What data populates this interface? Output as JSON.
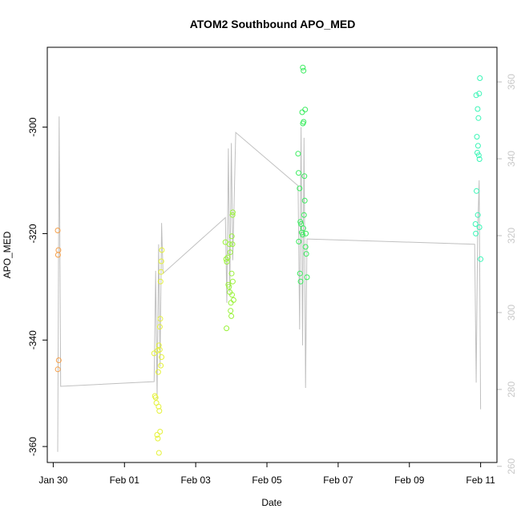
{
  "chart_data": {
    "type": "scatter",
    "title": "ATOM2 Southbound APO_MED",
    "xlabel": "Date",
    "ylabel": "APO_MED",
    "x_range": [
      "2017-01-29T20:00",
      "2017-02-11T11:00"
    ],
    "ylim": [
      -363,
      -285
    ],
    "y2lim": [
      261,
      369
    ],
    "grid": false,
    "x_ticks": [
      {
        "date": "2017-01-30",
        "label": "Jan 30"
      },
      {
        "date": "2017-02-01",
        "label": "Feb 01"
      },
      {
        "date": "2017-02-03",
        "label": "Feb 03"
      },
      {
        "date": "2017-02-05",
        "label": "Feb 05"
      },
      {
        "date": "2017-02-07",
        "label": "Feb 07"
      },
      {
        "date": "2017-02-09",
        "label": "Feb 09"
      },
      {
        "date": "2017-02-11",
        "label": "Feb 11"
      }
    ],
    "y_ticks": [
      -360,
      -340,
      -320,
      -300
    ],
    "y2_ticks": [
      260,
      280,
      300,
      320,
      340,
      360
    ],
    "colors": {
      "line": "#c0c0c0",
      "group1": "#f5a04b",
      "group2": "#e5f23a",
      "group3": "#9af23a",
      "group4": "#3aec5e",
      "group5": "#3af5b6",
      "right_axis": "#c8c8c8"
    },
    "point_groups": [
      {
        "color": "#f5a04b",
        "points": [
          {
            "x": "2017-01-30T03:00",
            "y": -319.4
          },
          {
            "x": "2017-01-30T03:30",
            "y": -323.1
          },
          {
            "x": "2017-01-30T03:15",
            "y": -324.0
          },
          {
            "x": "2017-01-30T03:45",
            "y": -343.8
          },
          {
            "x": "2017-01-30T03:05",
            "y": -345.5
          }
        ]
      },
      {
        "color": "#e5f23a",
        "points": [
          {
            "x": "2017-02-01T20:00",
            "y": -342.5
          },
          {
            "x": "2017-02-01T20:30",
            "y": -350.5
          },
          {
            "x": "2017-02-01T21:00",
            "y": -350.8
          },
          {
            "x": "2017-02-01T21:30",
            "y": -351.8
          },
          {
            "x": "2017-02-01T22:00",
            "y": -357.8
          },
          {
            "x": "2017-02-01T22:30",
            "y": -358.5
          },
          {
            "x": "2017-02-01T23:00",
            "y": -352.5
          },
          {
            "x": "2017-02-01T23:30",
            "y": -353.3
          },
          {
            "x": "2017-02-02T00:00",
            "y": -357.2
          },
          {
            "x": "2017-02-01T23:15",
            "y": -361.2
          },
          {
            "x": "2017-02-01T22:15",
            "y": -342.0
          },
          {
            "x": "2017-02-01T23:45",
            "y": -341.8
          },
          {
            "x": "2017-02-02T01:00",
            "y": -343.2
          },
          {
            "x": "2017-02-02T00:30",
            "y": -344.8
          },
          {
            "x": "2017-02-01T23:10",
            "y": -341.0
          },
          {
            "x": "2017-02-01T23:50",
            "y": -337.5
          },
          {
            "x": "2017-02-02T00:10",
            "y": -336.0
          },
          {
            "x": "2017-02-01T22:45",
            "y": -346.0
          },
          {
            "x": "2017-02-02T01:10",
            "y": -323.1
          },
          {
            "x": "2017-02-02T00:50",
            "y": -325.2
          },
          {
            "x": "2017-02-02T00:40",
            "y": -327.2
          },
          {
            "x": "2017-02-02T00:20",
            "y": -329.0
          }
        ]
      },
      {
        "color": "#9af23a",
        "points": [
          {
            "x": "2017-02-03T20:00",
            "y": -321.6
          },
          {
            "x": "2017-02-03T20:30",
            "y": -324.8
          },
          {
            "x": "2017-02-03T21:00",
            "y": -325.3
          },
          {
            "x": "2017-02-03T21:30",
            "y": -324.5
          },
          {
            "x": "2017-02-03T22:00",
            "y": -329.6
          },
          {
            "x": "2017-02-03T22:30",
            "y": -330.0
          },
          {
            "x": "2017-02-03T23:00",
            "y": -331.0
          },
          {
            "x": "2017-02-03T23:30",
            "y": -334.5
          },
          {
            "x": "2017-02-04T00:00",
            "y": -335.5
          },
          {
            "x": "2017-02-03T20:45",
            "y": -337.8
          },
          {
            "x": "2017-02-04T00:30",
            "y": -331.5
          },
          {
            "x": "2017-02-04T01:00",
            "y": -329.0
          },
          {
            "x": "2017-02-04T01:30",
            "y": -332.5
          },
          {
            "x": "2017-02-04T00:15",
            "y": -327.5
          },
          {
            "x": "2017-02-04T00:45",
            "y": -322.0
          },
          {
            "x": "2017-02-04T00:20",
            "y": -320.5
          },
          {
            "x": "2017-02-04T00:50",
            "y": -316.5
          },
          {
            "x": "2017-02-04T01:00",
            "y": -316.0
          },
          {
            "x": "2017-02-03T23:15",
            "y": -323.5
          },
          {
            "x": "2017-02-03T22:45",
            "y": -322.0
          },
          {
            "x": "2017-02-03T23:45",
            "y": -333.0
          }
        ]
      },
      {
        "color": "#3aec5e",
        "points": [
          {
            "x": "2017-02-05T21:00",
            "y": -305.0
          },
          {
            "x": "2017-02-05T21:20",
            "y": -308.6
          },
          {
            "x": "2017-02-05T22:00",
            "y": -311.5
          },
          {
            "x": "2017-02-05T22:30",
            "y": -317.8
          },
          {
            "x": "2017-02-05T23:00",
            "y": -318.2
          },
          {
            "x": "2017-02-05T23:30",
            "y": -319.8
          },
          {
            "x": "2017-02-06T00:00",
            "y": -320.2
          },
          {
            "x": "2017-02-06T00:30",
            "y": -319.0
          },
          {
            "x": "2017-02-06T01:00",
            "y": -316.5
          },
          {
            "x": "2017-02-06T01:30",
            "y": -313.8
          },
          {
            "x": "2017-02-06T02:00",
            "y": -322.5
          },
          {
            "x": "2017-02-06T02:30",
            "y": -323.8
          },
          {
            "x": "2017-02-06T03:00",
            "y": -328.2
          },
          {
            "x": "2017-02-05T21:30",
            "y": -321.5
          },
          {
            "x": "2017-02-05T22:15",
            "y": -327.5
          },
          {
            "x": "2017-02-05T22:45",
            "y": -329.0
          },
          {
            "x": "2017-02-06T01:15",
            "y": -309.2
          },
          {
            "x": "2017-02-05T23:45",
            "y": -297.2
          },
          {
            "x": "2017-02-06T00:15",
            "y": -299.3
          },
          {
            "x": "2017-02-06T00:45",
            "y": -299.0
          },
          {
            "x": "2017-02-06T01:45",
            "y": -296.7
          },
          {
            "x": "2017-02-06T00:10",
            "y": -288.8
          },
          {
            "x": "2017-02-06T00:40",
            "y": -289.4
          },
          {
            "x": "2017-02-06T02:15",
            "y": -320.0
          }
        ]
      },
      {
        "color": "#3af5b6",
        "points": [
          {
            "x": "2017-02-10T21:00",
            "y": -294.0
          },
          {
            "x": "2017-02-10T23:00",
            "y": -293.7
          },
          {
            "x": "2017-02-10T23:30",
            "y": -290.8
          },
          {
            "x": "2017-02-10T22:00",
            "y": -296.6
          },
          {
            "x": "2017-02-10T22:30",
            "y": -298.3
          },
          {
            "x": "2017-02-10T21:30",
            "y": -301.8
          },
          {
            "x": "2017-02-10T22:15",
            "y": -303.5
          },
          {
            "x": "2017-02-10T21:45",
            "y": -304.8
          },
          {
            "x": "2017-02-10T22:45",
            "y": -305.3
          },
          {
            "x": "2017-02-10T23:15",
            "y": -306.0
          },
          {
            "x": "2017-02-10T21:15",
            "y": -312.0
          },
          {
            "x": "2017-02-10T22:05",
            "y": -316.5
          },
          {
            "x": "2017-02-10T20:30",
            "y": -318.2
          },
          {
            "x": "2017-02-10T23:10",
            "y": -318.8
          },
          {
            "x": "2017-02-10T20:45",
            "y": -320.0
          },
          {
            "x": "2017-02-11T00:00",
            "y": -324.8
          }
        ]
      }
    ],
    "line_segments": [
      {
        "x": "2017-01-30T03:00",
        "y": -361.0
      },
      {
        "x": "2017-01-30T04:00",
        "y": -298.0
      },
      {
        "x": "2017-01-30T05:00",
        "y": -348.7
      },
      {
        "x": "2017-02-01T20:00",
        "y": -347.8
      },
      {
        "x": "2017-02-01T21:00",
        "y": -327.0
      },
      {
        "x": "2017-02-01T22:00",
        "y": -351.0
      },
      {
        "x": "2017-02-01T23:00",
        "y": -322.0
      },
      {
        "x": "2017-02-02T00:00",
        "y": -345.0
      },
      {
        "x": "2017-02-02T01:00",
        "y": -318.0
      },
      {
        "x": "2017-02-02T02:00",
        "y": -327.5
      },
      {
        "x": "2017-02-03T20:00",
        "y": -317.0
      },
      {
        "x": "2017-02-03T21:00",
        "y": -333.0
      },
      {
        "x": "2017-02-03T22:00",
        "y": -304.0
      },
      {
        "x": "2017-02-03T23:00",
        "y": -331.0
      },
      {
        "x": "2017-02-04T00:00",
        "y": -303.0
      },
      {
        "x": "2017-02-04T01:00",
        "y": -325.0
      },
      {
        "x": "2017-02-04T03:00",
        "y": -301.0
      },
      {
        "x": "2017-02-05T21:00",
        "y": -311.0
      },
      {
        "x": "2017-02-05T22:00",
        "y": -338.0
      },
      {
        "x": "2017-02-05T23:00",
        "y": -300.0
      },
      {
        "x": "2017-02-06T00:00",
        "y": -341.0
      },
      {
        "x": "2017-02-06T01:00",
        "y": -302.0
      },
      {
        "x": "2017-02-06T02:00",
        "y": -349.0
      },
      {
        "x": "2017-02-06T03:00",
        "y": -321.0
      },
      {
        "x": "2017-02-10T20:00",
        "y": -322.0
      },
      {
        "x": "2017-02-10T21:00",
        "y": -348.0
      },
      {
        "x": "2017-02-10T22:00",
        "y": -320.0
      },
      {
        "x": "2017-02-10T23:00",
        "y": -310.0
      },
      {
        "x": "2017-02-11T00:00",
        "y": -353.0
      }
    ]
  }
}
